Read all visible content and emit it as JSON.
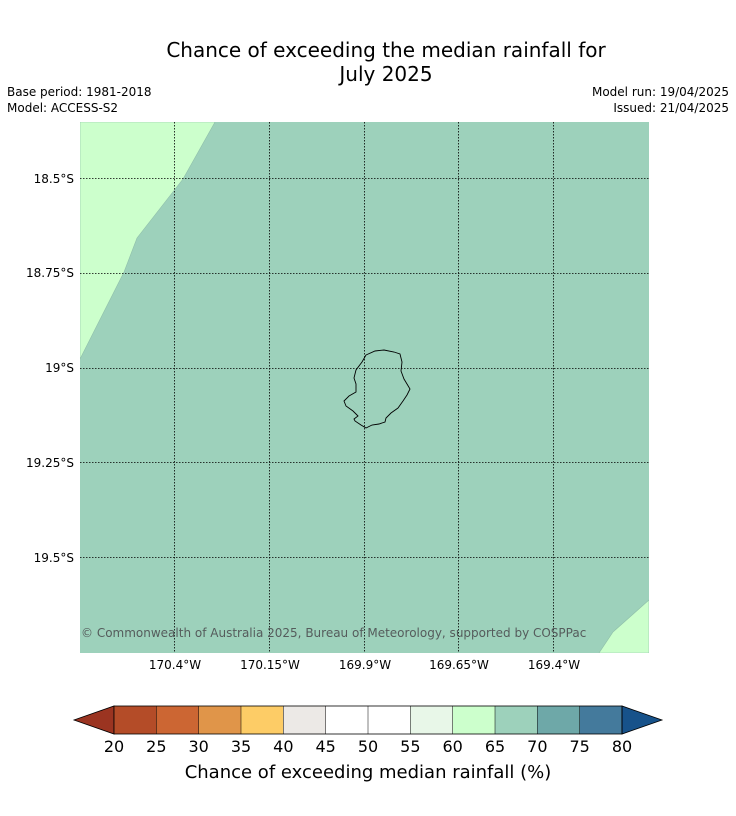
{
  "title": "Chance of exceeding the median rainfall for\nJuly 2025",
  "info": {
    "base_period": "Base period: 1981-2018",
    "model": "Model: ACCESS-S2",
    "model_run": "Model run: 19/04/2025",
    "issued": "Issued: 21/04/2025"
  },
  "map": {
    "lat_labels": [
      "18.5°S",
      "18.75°S",
      "19°S",
      "19.25°S",
      "19.5°S"
    ],
    "lon_labels": [
      "170.4°W",
      "170.15°W",
      "169.9°W",
      "169.65°W",
      "169.4°W"
    ],
    "copyright": "© Commonwealth of Australia 2025, Bureau of Meteorology, supported by COSPPac",
    "colors": {
      "band_60_65": "#ccffcc",
      "band_65_70": "#9dd1bb",
      "grid": "#000000",
      "coast": "#000000"
    }
  },
  "legend": {
    "label": "Chance of exceeding median rainfall (%)",
    "ticks": [
      "20",
      "25",
      "30",
      "35",
      "40",
      "45",
      "50",
      "55",
      "60",
      "65",
      "70",
      "75",
      "80"
    ],
    "colors": [
      "#9b3421",
      "#b44c28",
      "#cc6633",
      "#e09549",
      "#fdcc66",
      "#ece9e6",
      "#ffffff",
      "#ffffff",
      "#e8f7e8",
      "#ccffcc",
      "#9dd1bb",
      "#6ea8a8",
      "#447a9c",
      "#17528a"
    ]
  }
}
